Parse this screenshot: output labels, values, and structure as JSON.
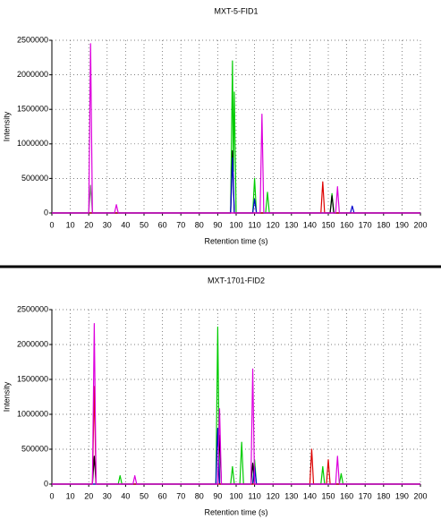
{
  "chart_data": [
    {
      "type": "line",
      "title": "MXT-5-FID1",
      "x_label": "Retention time (s)",
      "y_label": "Intensity",
      "xlim": [
        0,
        200
      ],
      "xticks": [
        0,
        10,
        20,
        30,
        40,
        50,
        60,
        70,
        80,
        90,
        100,
        110,
        120,
        130,
        140,
        150,
        160,
        170,
        180,
        190,
        200
      ],
      "ylim": [
        0,
        2500000
      ],
      "yticks": [
        0,
        500000,
        1000000,
        1500000,
        2000000,
        2500000
      ],
      "grid": true,
      "series": [
        {
          "color": "#808080",
          "x": [
            0,
            20,
            21,
            22,
            200
          ],
          "values": [
            0,
            0,
            400000,
            0,
            0
          ]
        },
        {
          "color": "#00cc00",
          "x": [
            0,
            97,
            98,
            98.5,
            99,
            100,
            109,
            110,
            111,
            116,
            117,
            118,
            151,
            152,
            153,
            200
          ],
          "values": [
            0,
            0,
            2200000,
            600000,
            1750000,
            0,
            0,
            500000,
            0,
            0,
            300000,
            0,
            0,
            280000,
            0,
            0
          ]
        },
        {
          "color": "#000000",
          "x": [
            0,
            97,
            98,
            99,
            151,
            152,
            153,
            200
          ],
          "values": [
            0,
            0,
            900000,
            0,
            0,
            250000,
            0,
            0
          ]
        },
        {
          "color": "#0000cc",
          "x": [
            0,
            97,
            98,
            99,
            109,
            110,
            111,
            162,
            163,
            164,
            200
          ],
          "values": [
            0,
            0,
            800000,
            0,
            0,
            200000,
            0,
            0,
            100000,
            0,
            0
          ]
        },
        {
          "color": "#dd0000",
          "x": [
            0,
            146,
            147,
            148,
            200
          ],
          "values": [
            0,
            0,
            450000,
            0,
            0
          ]
        },
        {
          "color": "#dd00dd",
          "x": [
            0,
            20,
            21,
            22,
            34,
            35,
            36,
            113,
            114,
            115,
            154,
            155,
            156,
            200
          ],
          "values": [
            0,
            0,
            2450000,
            0,
            0,
            120000,
            0,
            0,
            1430000,
            0,
            0,
            380000,
            0,
            0
          ]
        }
      ]
    },
    {
      "type": "line",
      "title": "MXT-1701-FID2",
      "x_label": "Retention time (s)",
      "y_label": "Intensity",
      "xlim": [
        0,
        200
      ],
      "xticks": [
        0,
        10,
        20,
        30,
        40,
        50,
        60,
        70,
        80,
        90,
        100,
        110,
        120,
        130,
        140,
        150,
        160,
        170,
        180,
        190,
        200
      ],
      "ylim": [
        0,
        2500000
      ],
      "yticks": [
        0,
        500000,
        1000000,
        1500000,
        2000000,
        2500000
      ],
      "grid": true,
      "series": [
        {
          "color": "#00cc00",
          "x": [
            0,
            36,
            37,
            38,
            89,
            90,
            91,
            97,
            98,
            99,
            102,
            103,
            104,
            109,
            110,
            111,
            146,
            147,
            148,
            156,
            157,
            158,
            200
          ],
          "values": [
            0,
            0,
            120000,
            0,
            0,
            2250000,
            0,
            0,
            250000,
            0,
            0,
            600000,
            0,
            0,
            350000,
            0,
            0,
            250000,
            0,
            0,
            150000,
            0,
            0
          ]
        },
        {
          "color": "#000000",
          "x": [
            0,
            22,
            23,
            24,
            90,
            91,
            92,
            108,
            109,
            110,
            200
          ],
          "values": [
            0,
            0,
            400000,
            0,
            0,
            700000,
            0,
            0,
            300000,
            0,
            0
          ]
        },
        {
          "color": "#0000cc",
          "x": [
            0,
            89,
            90,
            91,
            109,
            110,
            111,
            200
          ],
          "values": [
            0,
            0,
            800000,
            0,
            0,
            250000,
            0,
            0
          ]
        },
        {
          "color": "#dd0000",
          "x": [
            0,
            22,
            23,
            24,
            140,
            141,
            142,
            149,
            150,
            151,
            200
          ],
          "values": [
            0,
            0,
            1400000,
            0,
            0,
            500000,
            0,
            0,
            350000,
            0,
            0
          ]
        },
        {
          "color": "#dd00dd",
          "x": [
            0,
            22,
            23,
            24,
            44,
            45,
            46,
            90,
            91,
            92,
            108,
            109,
            110,
            154,
            155,
            156,
            200
          ],
          "values": [
            0,
            0,
            2300000,
            0,
            0,
            120000,
            0,
            0,
            1080000,
            0,
            0,
            1650000,
            0,
            0,
            400000,
            0,
            0
          ]
        }
      ]
    }
  ]
}
